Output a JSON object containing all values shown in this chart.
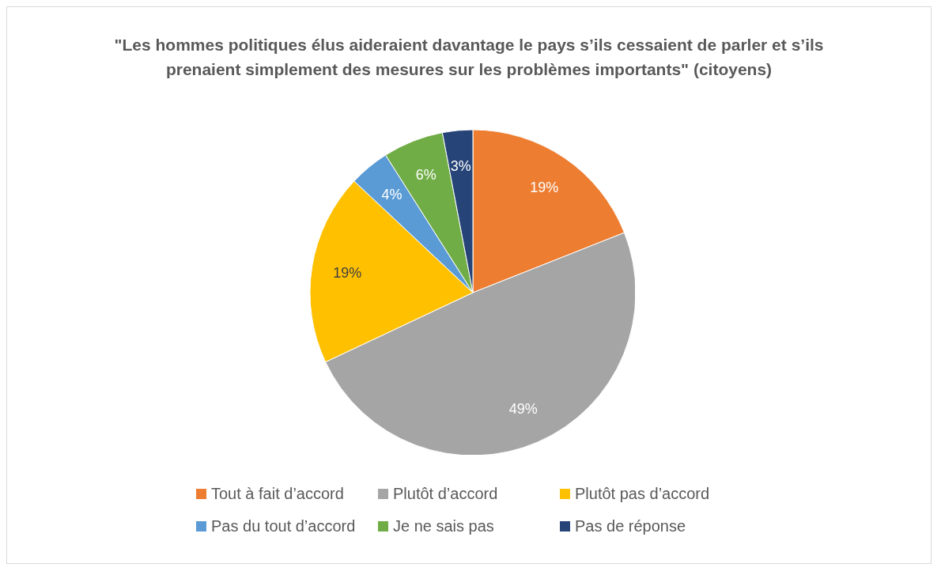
{
  "chart_data": {
    "type": "pie",
    "title": "\"Les hommes politiques élus aideraient davantage le pays s’ils cessaient de parler et s’ils prenaient simplement des mesures sur les problèmes importants\" (citoyens)",
    "categories": [
      "Tout à fait d’accord",
      "Plutôt d’accord",
      "Plutôt pas d’accord",
      "Pas du tout d’accord",
      "Je ne sais pas",
      "Pas de réponse"
    ],
    "values": [
      19,
      49,
      19,
      4,
      6,
      3
    ],
    "value_labels": [
      "19%",
      "49%",
      "19%",
      "4%",
      "6%",
      "3%"
    ],
    "colors": [
      "#ed7d31",
      "#a5a5a5",
      "#ffc000",
      "#5b9bd5",
      "#70ad47",
      "#264478"
    ],
    "legend": "bottom"
  }
}
